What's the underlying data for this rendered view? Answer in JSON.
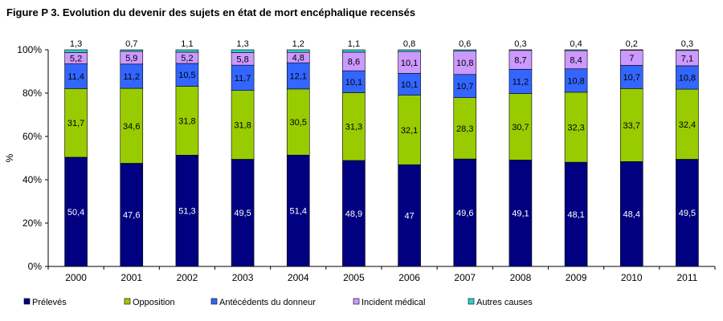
{
  "title": "Figure P 3. Evolution du devenir des sujets en état de mort encéphalique recensés",
  "chart_data": {
    "type": "bar",
    "stacked": true,
    "title": "Figure P 3. Evolution du devenir des sujets en état de mort encéphalique recensés",
    "xlabel": "",
    "ylabel": "%",
    "ylim": [
      0,
      100
    ],
    "yticks": [
      "0%",
      "20%",
      "40%",
      "60%",
      "80%",
      "100%"
    ],
    "categories": [
      "2000",
      "2001",
      "2002",
      "2003",
      "2004",
      "2005",
      "2006",
      "2007",
      "2008",
      "2009",
      "2010",
      "2011"
    ],
    "grid": false,
    "legend_position": "bottom",
    "series": [
      {
        "name": "Prélevés",
        "color": "#000080",
        "label_color": "#ffffff",
        "values": [
          50.4,
          47.6,
          51.3,
          49.5,
          51.4,
          48.9,
          47,
          49.6,
          49.1,
          48.1,
          48.4,
          49.5
        ],
        "labels": [
          "50,4",
          "47,6",
          "51,3",
          "49,5",
          "51,4",
          "48,9",
          "47",
          "49,6",
          "49,1",
          "48,1",
          "48,4",
          "49,5"
        ]
      },
      {
        "name": "Opposition",
        "color": "#99cc00",
        "label_color": "#000000",
        "values": [
          31.7,
          34.6,
          31.8,
          31.8,
          30.5,
          31.3,
          32.1,
          28.3,
          30.7,
          32.3,
          33.7,
          32.4
        ],
        "labels": [
          "31,7",
          "34,6",
          "31,8",
          "31,8",
          "30,5",
          "31,3",
          "32,1",
          "28,3",
          "30,7",
          "32,3",
          "33,7",
          "32,4"
        ]
      },
      {
        "name": "Antécédents du donneur",
        "color": "#3366ff",
        "label_color": "#000000",
        "values": [
          11.4,
          11.2,
          10.5,
          11.7,
          12.1,
          10.1,
          10.1,
          10.7,
          11.2,
          10.8,
          10.7,
          10.8
        ],
        "labels": [
          "11,4",
          "11,2",
          "10,5",
          "11,7",
          "12,1",
          "10,1",
          "10,1",
          "10,7",
          "11,2",
          "10,8",
          "10,7",
          "10,8"
        ]
      },
      {
        "name": "Incident médical",
        "color": "#cc99ff",
        "label_color": "#000000",
        "values": [
          5.2,
          5.9,
          5.2,
          5.8,
          4.8,
          8.6,
          10.1,
          10.8,
          8.7,
          8.4,
          7,
          7.1
        ],
        "labels": [
          "5,2",
          "5,9",
          "5,2",
          "5,8",
          "4,8",
          "8,6",
          "10,1",
          "10,8",
          "8,7",
          "8,4",
          "7",
          "7,1"
        ]
      },
      {
        "name": "Autres causes",
        "color": "#33cccc",
        "label_color": "#000000",
        "values": [
          1.3,
          0.7,
          1.1,
          1.3,
          1.2,
          1.1,
          0.8,
          0.6,
          0.3,
          0.4,
          0.2,
          0.3
        ],
        "labels": [
          "1,3",
          "0,7",
          "1,1",
          "1,3",
          "1,2",
          "1,1",
          "0,8",
          "0,6",
          "0,3",
          "0,4",
          "0,2",
          "0,3"
        ]
      }
    ]
  }
}
